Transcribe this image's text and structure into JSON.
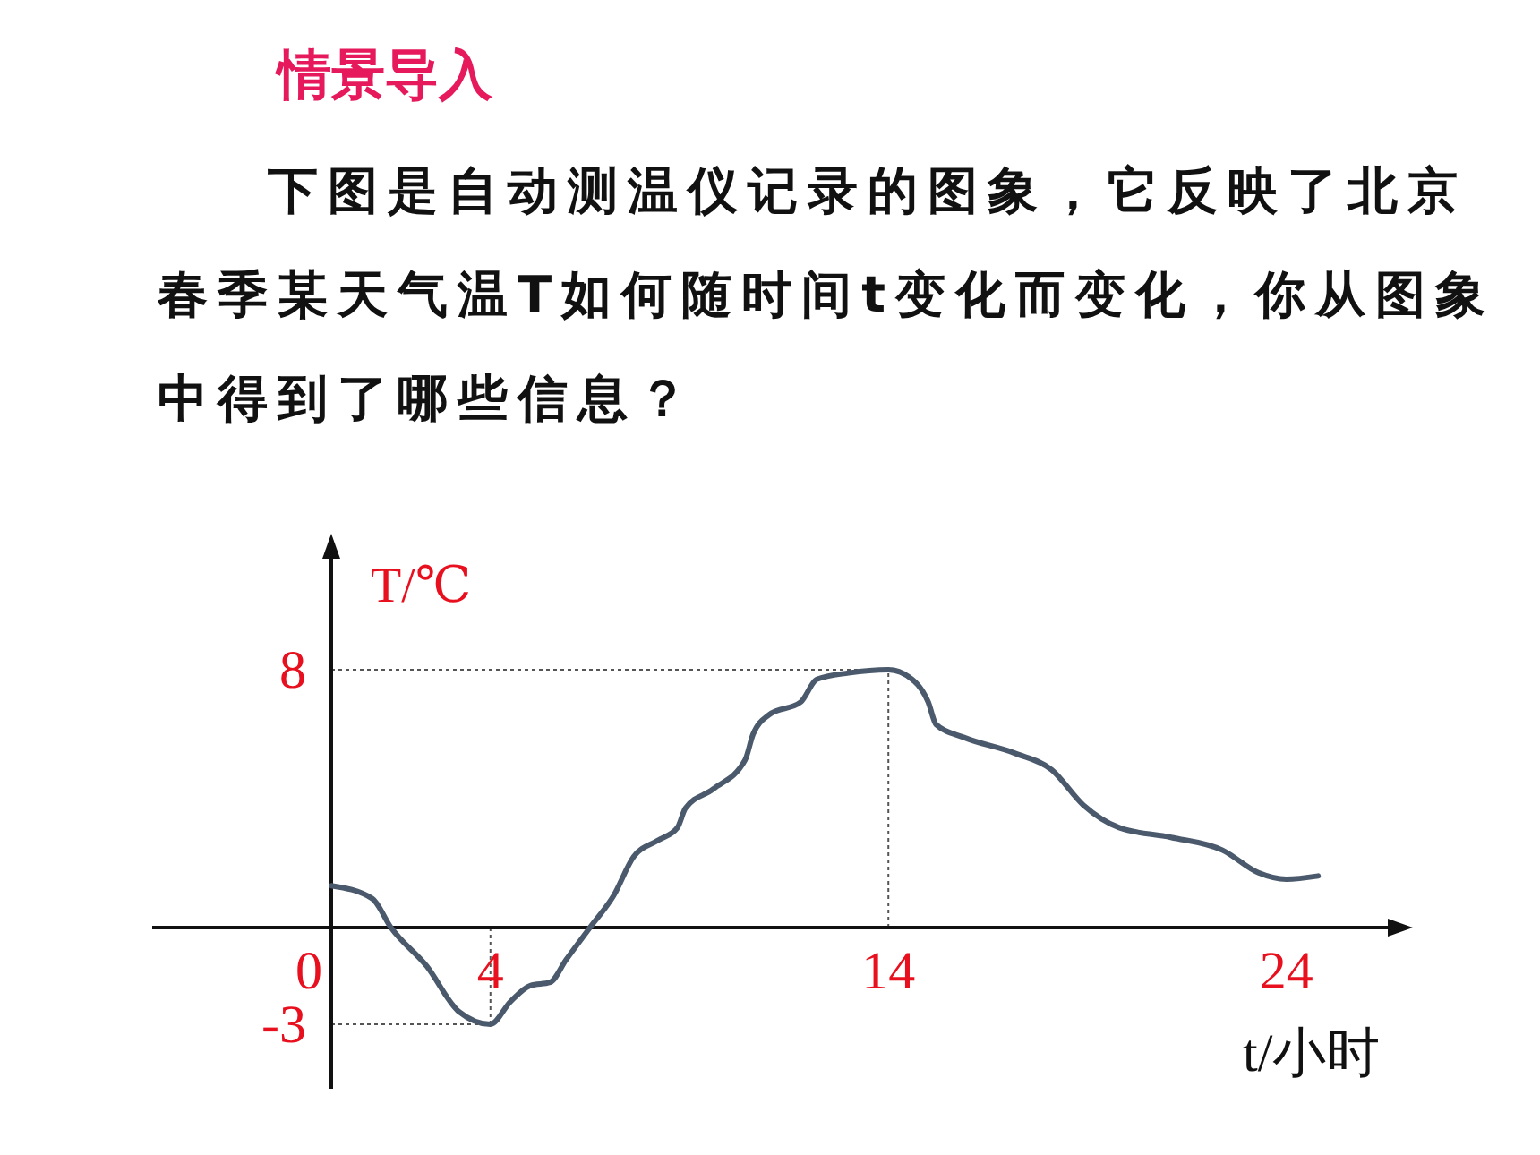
{
  "chart_data": {
    "type": "line",
    "title": "情景导入",
    "subtitle": "下图是自动测温仪记录的图象，它反映了北京春季某天气温T如何随时间t变化而变化，你从图象中得到了哪些信息？",
    "xlabel": "t/小时",
    "ylabel": "T/℃",
    "x": [
      0,
      1.03,
      1.5,
      2.4,
      3.2,
      4,
      4.5,
      5,
      5.5,
      5.9,
      6.5,
      7.1,
      7.6,
      8.2,
      8.7,
      8.9,
      9.6,
      10.4,
      10.6,
      11,
      11.8,
      12.2,
      13,
      14,
      14.6,
      15,
      15.2,
      15.9,
      17.2,
      18.1,
      18.9,
      19.8,
      21.1,
      22.4,
      23.3,
      24,
      24.8
    ],
    "series": [
      {
        "color": "#4b596c",
        "values": [
          1.3,
          0.9,
          0,
          -1.2,
          -2.6,
          -3,
          -2.3,
          -1.8,
          -1.7,
          -1,
          0,
          1,
          2.2,
          2.7,
          3.1,
          3.7,
          4.3,
          5.2,
          6,
          6.6,
          7,
          7.7,
          7.9,
          8,
          7.7,
          7,
          6.3,
          5.9,
          5.4,
          4.9,
          3.8,
          3.1,
          2.8,
          2.4,
          1.7,
          1.5,
          1.6
        ]
      }
    ],
    "xlim": [
      -4.5,
      27
    ],
    "ylim": [
      -5,
      12
    ],
    "xticks": [
      0,
      4,
      14,
      24
    ],
    "yticks": [
      -3,
      8
    ],
    "ref_lines": [
      {
        "axis": "y",
        "value": 8,
        "line_style": "dotted"
      },
      {
        "axis": "x",
        "value": 14,
        "line_style": "dotted"
      },
      {
        "axis": "x",
        "value": 4,
        "line_style": "dotted"
      },
      {
        "axis": "y",
        "value": -3,
        "line_style": "dotted"
      }
    ],
    "grid": false,
    "marker": "none",
    "line_style": "solid"
  }
}
